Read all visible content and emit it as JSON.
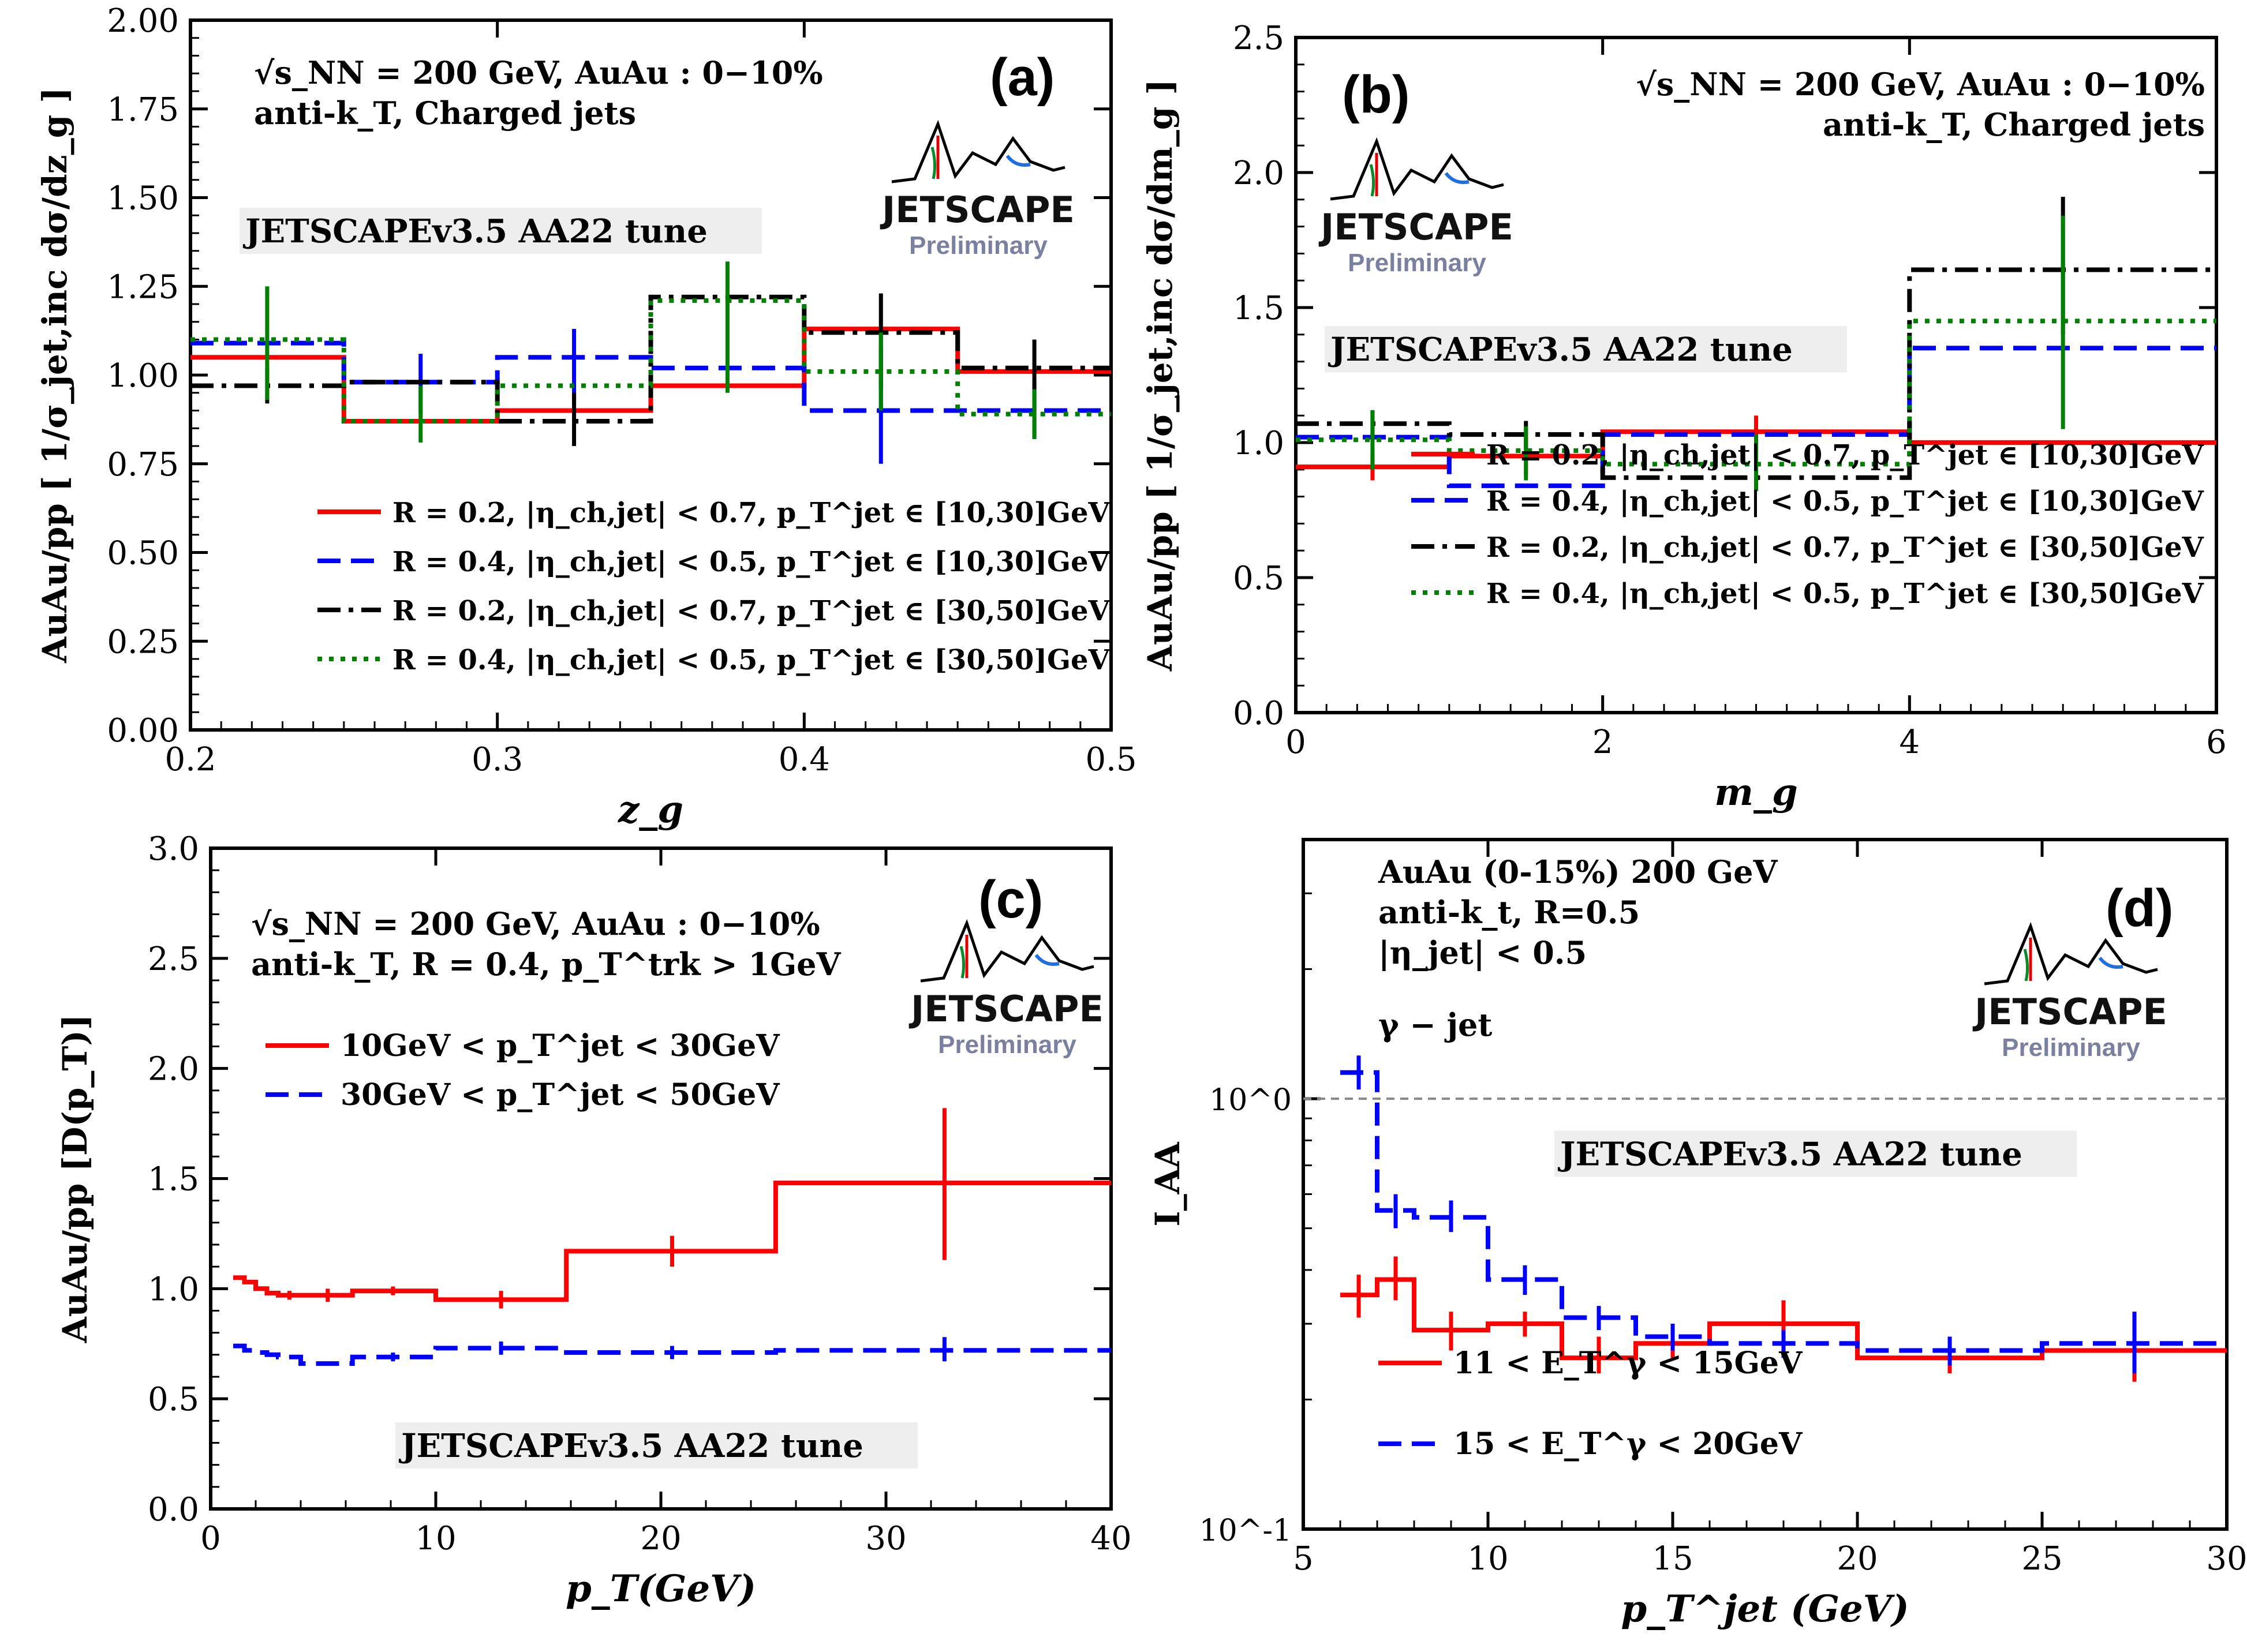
{
  "figure": {
    "panels": [
      {
        "id": "a",
        "panel_label": "(a)",
        "type": "line",
        "step": true,
        "xlabel": "z_g",
        "ylabel": "AuAu/pp [ 1/σ_jet,inc dσ/dz_g ]",
        "xlim": [
          0.2,
          0.5
        ],
        "ylim": [
          0.0,
          2.0
        ],
        "log_y": false,
        "xticks": [
          "0.2",
          "0.3",
          "0.4",
          "0.5"
        ],
        "yticks": [
          "0.00",
          "0.25",
          "0.50",
          "0.75",
          "1.00",
          "1.25",
          "1.50",
          "1.75",
          "2.00"
        ],
        "annotations": [
          "√s_NN = 200 GeV, AuAu : 0−10%",
          "anti-k_T, Charged jets"
        ],
        "tune_label": "JETSCAPEv3.5 AA22 tune",
        "logo": {
          "text": "JETSCAPE",
          "subtext": "Preliminary"
        },
        "legend_position": "lower-right",
        "bins": [
          0.2,
          0.25,
          0.3,
          0.35,
          0.4,
          0.45,
          0.5
        ],
        "series": [
          {
            "name": "R = 0.2, |η_ch,jet| < 0.7, p_T^jet ∈ [10,30]GeV",
            "color": "#ff0000",
            "dash": "solid",
            "values": [
              1.05,
              0.87,
              0.9,
              0.97,
              1.13,
              1.01
            ],
            "err_x": [],
            "err_lo": [],
            "err_hi": []
          },
          {
            "name": "R = 0.4, |η_ch,jet| < 0.5, p_T^jet ∈ [10,30]GeV",
            "color": "#0000ff",
            "dash": "dashed",
            "values": [
              1.09,
              0.98,
              1.05,
              1.02,
              0.9,
              0.9
            ],
            "err_x": [
              0.275,
              0.325,
              0.425,
              0.475
            ],
            "err_lo": [
              0.89,
              0.92,
              0.75,
              0.82
            ],
            "err_hi": [
              1.06,
              1.13,
              1.08,
              0.98
            ]
          },
          {
            "name": "R = 0.2, |η_ch,jet| < 0.7, p_T^jet ∈ [30,50]GeV",
            "color": "#000000",
            "dash": "dashdot",
            "values": [
              0.97,
              0.98,
              0.87,
              1.22,
              1.12,
              1.02
            ],
            "err_x": [
              0.225,
              0.325,
              0.425,
              0.475
            ],
            "err_lo": [
              0.92,
              0.8,
              0.96,
              0.9
            ],
            "err_hi": [
              1.02,
              0.95,
              1.23,
              1.1
            ]
          },
          {
            "name": "R = 0.4, |η_ch,jet| < 0.5, p_T^jet ∈ [30,50]GeV",
            "color": "#008000",
            "dash": "dotted",
            "values": [
              1.1,
              0.87,
              0.97,
              1.21,
              1.01,
              0.89
            ],
            "err_x": [
              0.225,
              0.275,
              0.375,
              0.425,
              0.475
            ],
            "err_lo": [
              0.93,
              0.81,
              0.95,
              0.9,
              0.82
            ],
            "err_hi": [
              1.25,
              0.97,
              1.32,
              1.12,
              0.96
            ]
          }
        ]
      },
      {
        "id": "b",
        "panel_label": "(b)",
        "type": "line",
        "step": true,
        "xlabel": "m_g",
        "ylabel": "AuAu/pp [ 1/σ_jet,inc dσ/dm_g ]",
        "xlim": [
          0,
          6
        ],
        "ylim": [
          0.0,
          2.5
        ],
        "log_y": false,
        "xticks": [
          "0",
          "2",
          "4",
          "6"
        ],
        "yticks": [
          "0.0",
          "0.5",
          "1.0",
          "1.5",
          "2.0",
          "2.5"
        ],
        "annotations": [
          "√s_NN = 200 GeV, AuAu : 0−10%",
          "anti-k_T, Charged jets"
        ],
        "tune_label": "JETSCAPEv3.5 AA22 tune",
        "logo": {
          "text": "JETSCAPE",
          "subtext": "Preliminary"
        },
        "legend_position": "lower-right",
        "bins": [
          0,
          1,
          2,
          4,
          6
        ],
        "series": [
          {
            "name": "R = 0.2, |η_ch,jet| < 0.7, p_T^jet ∈ [10,30]GeV",
            "color": "#ff0000",
            "dash": "solid",
            "values": [
              0.91,
              0.95,
              1.04,
              1.0
            ],
            "err_x": [
              0.5,
              1.5,
              3.0
            ],
            "err_lo": [
              0.86,
              0.88,
              0.98
            ],
            "err_hi": [
              0.96,
              1.02,
              1.1
            ]
          },
          {
            "name": "R = 0.4, |η_ch,jet| < 0.5, p_T^jet ∈ [10,30]GeV",
            "color": "#0000ff",
            "dash": "dashed",
            "values": [
              1.02,
              0.84,
              1.03,
              1.35
            ],
            "err_x": [],
            "err_lo": [],
            "err_hi": []
          },
          {
            "name": "R = 0.2, |η_ch,jet| < 0.7, p_T^jet ∈ [30,50]GeV",
            "color": "#000000",
            "dash": "dashdot",
            "values": [
              1.07,
              1.03,
              0.87,
              1.64
            ],
            "err_x": [
              0.5,
              1.5,
              5.0
            ],
            "err_lo": [
              1.02,
              0.98,
              1.4
            ],
            "err_hi": [
              1.12,
              1.08,
              1.91
            ]
          },
          {
            "name": "R = 0.4, |η_ch,jet| < 0.5, p_T^jet ∈ [30,50]GeV",
            "color": "#008000",
            "dash": "dotted",
            "values": [
              1.01,
              0.97,
              0.92,
              1.45
            ],
            "err_x": [
              0.5,
              1.5,
              3.0,
              5.0
            ],
            "err_lo": [
              0.9,
              0.86,
              0.82,
              1.05
            ],
            "err_hi": [
              1.12,
              1.06,
              1.03,
              1.84
            ]
          }
        ]
      },
      {
        "id": "c",
        "panel_label": "(c)",
        "type": "line",
        "step": true,
        "xlabel": "p_T(GeV)",
        "ylabel": "AuAu/pp [D(p_T)]",
        "xlim": [
          0,
          40
        ],
        "ylim": [
          0.0,
          3.0
        ],
        "log_y": false,
        "xticks": [
          "0",
          "10",
          "20",
          "30",
          "40"
        ],
        "yticks": [
          "0.0",
          "0.5",
          "1.0",
          "1.5",
          "2.0",
          "2.5",
          "3.0"
        ],
        "annotations": [
          "√s_NN = 200 GeV, AuAu : 0−10%",
          "anti-k_T, R = 0.4, p_T^trk > 1GeV"
        ],
        "tune_label": "JETSCAPEv3.5 AA22 tune",
        "logo": {
          "text": "JETSCAPE",
          "subtext": "Preliminary"
        },
        "legend_position": "upper-left",
        "bins": [
          1.0,
          1.5,
          2.0,
          2.5,
          3.0,
          4.0,
          6.3,
          10.0,
          15.8,
          25.1,
          40.0
        ],
        "series": [
          {
            "name": "10GeV < p_T^jet < 30GeV",
            "color": "#ff0000",
            "dash": "solid",
            "values": [
              1.05,
              1.03,
              1.0,
              0.98,
              0.97,
              0.97,
              0.99,
              0.95,
              1.17,
              1.48
            ],
            "err_x": [
              3.5,
              5.2,
              8.1,
              12.9,
              20.5,
              32.6
            ],
            "err_lo": [
              0.95,
              0.94,
              0.97,
              0.91,
              1.1,
              1.13
            ],
            "err_hi": [
              0.99,
              1.0,
              1.01,
              0.99,
              1.24,
              1.82
            ]
          },
          {
            "name": "30GeV < p_T^jet < 50GeV",
            "color": "#0000ff",
            "dash": "dashed",
            "values": [
              0.74,
              0.72,
              0.71,
              0.7,
              0.69,
              0.66,
              0.69,
              0.73,
              0.71,
              0.72
            ],
            "err_x": [
              8.1,
              12.9,
              20.5,
              32.6
            ],
            "err_lo": [
              0.67,
              0.7,
              0.68,
              0.67
            ],
            "err_hi": [
              0.71,
              0.76,
              0.74,
              0.78
            ]
          }
        ]
      },
      {
        "id": "d",
        "panel_label": "(d)",
        "type": "line",
        "step": true,
        "xlabel": "p_T^jet (GeV)",
        "ylabel": "I_AA",
        "xlim": [
          5,
          30
        ],
        "ylim": [
          0.1,
          4.0
        ],
        "log_y": true,
        "xticks": [
          "5",
          "10",
          "15",
          "20",
          "25",
          "30"
        ],
        "yticks": [
          "10^0",
          "10^-1"
        ],
        "annotations": [
          "AuAu (0-15%) 200 GeV",
          "anti-k_t, R=0.5",
          "|η_jet| < 0.5",
          "γ − jet"
        ],
        "tune_label": "JETSCAPEv3.5 AA22 tune",
        "logo": {
          "text": "JETSCAPE",
          "subtext": "Preliminary"
        },
        "legend_position": "lower-left",
        "reference_line": 1.0,
        "bins": [
          6,
          7,
          8,
          10,
          12,
          14,
          16,
          20,
          25,
          30
        ],
        "series": [
          {
            "name": "11 < E_T^γ < 15GeV",
            "color": "#ff0000",
            "dash": "solid",
            "values": [
              0.35,
              0.38,
              0.29,
              0.3,
              0.25,
              0.27,
              0.3,
              0.25,
              0.26
            ],
            "err_x": [
              6.5,
              7.5,
              9.0,
              11.0,
              13.0,
              15.0,
              18.0,
              22.5,
              27.5
            ],
            "err_lo": [
              0.31,
              0.34,
              0.26,
              0.28,
              0.23,
              0.25,
              0.27,
              0.23,
              0.22
            ],
            "err_hi": [
              0.39,
              0.43,
              0.32,
              0.32,
              0.28,
              0.3,
              0.34,
              0.28,
              0.32
            ]
          },
          {
            "name": "15 < E_T^γ < 20GeV",
            "color": "#0000ff",
            "dash": "dashed",
            "values": [
              1.15,
              0.55,
              0.53,
              0.38,
              0.31,
              0.28,
              0.27,
              0.26,
              0.27
            ],
            "err_x": [
              6.5,
              7.5,
              9.0,
              11.0,
              13.0,
              15.0,
              18.0,
              22.5,
              27.5
            ],
            "err_lo": [
              1.05,
              0.5,
              0.49,
              0.35,
              0.29,
              0.26,
              0.25,
              0.24,
              0.23
            ],
            "err_hi": [
              1.26,
              0.6,
              0.58,
              0.41,
              0.33,
              0.3,
              0.29,
              0.28,
              0.32
            ]
          }
        ]
      }
    ]
  },
  "chart_data": [
    {
      "type": "line",
      "xlabel": "z_g",
      "ylabel": "AuAu/pp [ 1/σ_jet,inc dσ/dz_g ]",
      "xlim": [
        0.2,
        0.5
      ],
      "ylim": [
        0.0,
        2.0
      ],
      "categories": [
        "0.2-0.25",
        "0.25-0.3",
        "0.3-0.35",
        "0.35-0.4",
        "0.4-0.45",
        "0.45-0.5"
      ],
      "series": [
        {
          "name": "R = 0.2, |η_ch,jet| < 0.7, p_T^jet ∈ [10,30]GeV",
          "values": [
            1.05,
            0.87,
            0.9,
            0.97,
            1.13,
            1.01
          ]
        },
        {
          "name": "R = 0.4, |η_ch,jet| < 0.5, p_T^jet ∈ [10,30]GeV",
          "values": [
            1.09,
            0.98,
            1.05,
            1.02,
            0.9,
            0.9
          ]
        },
        {
          "name": "R = 0.2, |η_ch,jet| < 0.7, p_T^jet ∈ [30,50]GeV",
          "values": [
            0.97,
            0.98,
            0.87,
            1.22,
            1.12,
            1.02
          ]
        },
        {
          "name": "R = 0.4, |η_ch,jet| < 0.5, p_T^jet ∈ [30,50]GeV",
          "values": [
            1.1,
            0.87,
            0.97,
            1.21,
            1.01,
            0.89
          ]
        }
      ]
    },
    {
      "type": "line",
      "xlabel": "m_g",
      "ylabel": "AuAu/pp [ 1/σ_jet,inc dσ/dm_g ]",
      "xlim": [
        0,
        6
      ],
      "ylim": [
        0.0,
        2.5
      ],
      "categories": [
        "0-1",
        "1-2",
        "2-4",
        "4-6"
      ],
      "series": [
        {
          "name": "R = 0.2, |η_ch,jet| < 0.7, p_T^jet ∈ [10,30]GeV",
          "values": [
            0.91,
            0.95,
            1.04,
            1.0
          ]
        },
        {
          "name": "R = 0.4, |η_ch,jet| < 0.5, p_T^jet ∈ [10,30]GeV",
          "values": [
            1.02,
            0.84,
            1.03,
            1.35
          ]
        },
        {
          "name": "R = 0.2, |η_ch,jet| < 0.7, p_T^jet ∈ [30,50]GeV",
          "values": [
            1.07,
            1.03,
            0.87,
            1.64
          ]
        },
        {
          "name": "R = 0.4, |η_ch,jet| < 0.5, p_T^jet ∈ [30,50]GeV",
          "values": [
            1.01,
            0.97,
            0.92,
            1.45
          ]
        }
      ]
    },
    {
      "type": "line",
      "xlabel": "p_T(GeV)",
      "ylabel": "AuAu/pp [D(p_T)]",
      "xlim": [
        0,
        40
      ],
      "ylim": [
        0.0,
        3.0
      ],
      "x": [
        1.25,
        1.75,
        2.25,
        2.75,
        3.5,
        5.15,
        8.15,
        12.9,
        20.45,
        32.55
      ],
      "series": [
        {
          "name": "10GeV < p_T^jet < 30GeV",
          "values": [
            1.05,
            1.03,
            1.0,
            0.98,
            0.97,
            0.97,
            0.99,
            0.95,
            1.17,
            1.48
          ]
        },
        {
          "name": "30GeV < p_T^jet < 50GeV",
          "values": [
            0.74,
            0.72,
            0.71,
            0.7,
            0.69,
            0.66,
            0.69,
            0.73,
            0.71,
            0.72
          ]
        }
      ]
    },
    {
      "type": "line",
      "xlabel": "p_T^jet (GeV)",
      "ylabel": "I_AA",
      "xlim": [
        5,
        30
      ],
      "ylim": [
        0.1,
        4.0
      ],
      "log_y": true,
      "x": [
        6.5,
        7.5,
        9.0,
        11.0,
        13.0,
        15.0,
        18.0,
        22.5,
        27.5
      ],
      "series": [
        {
          "name": "11 < E_T^γ < 15GeV",
          "values": [
            0.35,
            0.38,
            0.29,
            0.3,
            0.25,
            0.27,
            0.3,
            0.25,
            0.26
          ]
        },
        {
          "name": "15 < E_T^γ < 20GeV",
          "values": [
            1.15,
            0.55,
            0.53,
            0.38,
            0.31,
            0.28,
            0.27,
            0.26,
            0.27
          ]
        }
      ]
    }
  ]
}
